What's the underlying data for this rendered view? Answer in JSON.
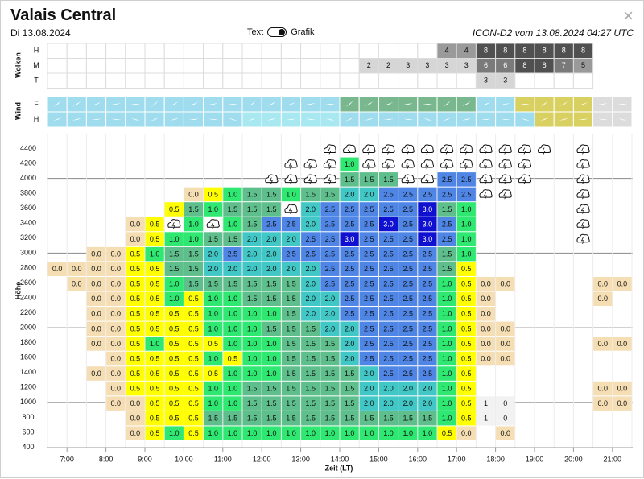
{
  "header": {
    "title": "Valais Central",
    "date": "Di 13.08.2024",
    "toggle_left": "Text",
    "toggle_right": "Grafik",
    "model_run": "ICON-D2 vom 13.08.2024 04:27 UTC",
    "close_label": "×"
  },
  "labels": {
    "clouds_section": "Wolken",
    "wind_section": "Wind",
    "height_axis": "Höhe",
    "time_axis": "Zeit (LT)",
    "cloud_rows": [
      "H",
      "M",
      "T"
    ],
    "wind_rows": [
      "F",
      "H"
    ]
  },
  "clouds": {
    "H": [
      null,
      null,
      null,
      null,
      null,
      null,
      null,
      null,
      null,
      null,
      null,
      null,
      null,
      null,
      null,
      null,
      null,
      null,
      null,
      null,
      4,
      4,
      8,
      8,
      8,
      8,
      8,
      8
    ],
    "M": [
      null,
      null,
      null,
      null,
      null,
      null,
      null,
      null,
      null,
      null,
      null,
      null,
      null,
      null,
      null,
      null,
      2,
      2,
      3,
      3,
      3,
      3,
      6,
      6,
      8,
      8,
      7,
      5
    ],
    "T": [
      null,
      null,
      null,
      null,
      null,
      null,
      null,
      null,
      null,
      null,
      null,
      null,
      null,
      null,
      null,
      null,
      null,
      null,
      null,
      null,
      null,
      null,
      3,
      3,
      null,
      null,
      null,
      null
    ]
  },
  "altitudes": [
    4400,
    4200,
    4000,
    3800,
    3600,
    3400,
    3200,
    3000,
    2800,
    2600,
    2400,
    2200,
    2000,
    1800,
    1600,
    1400,
    1200,
    1000,
    800,
    600,
    400
  ],
  "times": [
    "7:00",
    "8:00",
    "9:00",
    "10:00",
    "11:00",
    "12:00",
    "13:00",
    "14:00",
    "15:00",
    "16:00",
    "17:00",
    "18:00",
    "19:00",
    "20:00",
    "21:00"
  ],
  "thermal_rows": [
    {
      "alt": 4400,
      "cells": [
        null,
        null,
        null,
        null,
        null,
        null,
        null,
        null,
        null,
        null,
        null,
        null,
        null,
        null,
        "c",
        "c",
        "c",
        "c",
        "c",
        "c",
        "c",
        "c",
        "c",
        "c",
        "c",
        "c",
        null,
        "c",
        null,
        null
      ]
    },
    {
      "alt": 4200,
      "cells": [
        null,
        null,
        null,
        null,
        null,
        null,
        null,
        null,
        null,
        null,
        null,
        null,
        "c",
        "c",
        "c",
        "1.0",
        "c",
        "c",
        "c",
        "c",
        "c",
        "c",
        "c",
        "c",
        "c",
        null,
        null,
        "c",
        null,
        null
      ]
    },
    {
      "alt": 4000,
      "cells": [
        null,
        null,
        null,
        null,
        null,
        null,
        null,
        null,
        null,
        null,
        null,
        "c",
        "c",
        "c",
        "c",
        "1.5",
        "1.5",
        "1.5",
        "c",
        "c",
        "2.5",
        "2.5",
        "c",
        "c",
        "c",
        null,
        null,
        "c",
        null,
        null
      ]
    },
    {
      "alt": 3800,
      "cells": [
        null,
        null,
        null,
        null,
        null,
        null,
        null,
        "0.0",
        "0.5",
        "1.0",
        "1.5",
        "1.5",
        "1.0",
        "1.5",
        "1.5",
        "2.0",
        "2.0",
        "2.5",
        "2.5",
        "2.5",
        "2.5",
        "2.5",
        "c",
        "c",
        null,
        null,
        null,
        "c",
        null,
        null
      ]
    },
    {
      "alt": 3600,
      "cells": [
        null,
        null,
        null,
        null,
        null,
        null,
        "0.5",
        "1.5",
        "1.0",
        "1.5",
        "1.5",
        "1.5",
        "c",
        "2.0",
        "2.5",
        "2.5",
        "2.5",
        "2.5",
        "2.5",
        "3.0",
        "1.5",
        "1.0",
        null,
        null,
        null,
        null,
        null,
        "c",
        null,
        null
      ]
    },
    {
      "alt": 3400,
      "cells": [
        null,
        null,
        null,
        null,
        "0.0",
        "0.5",
        "c",
        "1.0",
        "c",
        "1.0",
        "1.5",
        "2.5",
        "2.5",
        "2.0",
        "2.5",
        "2.5",
        "2.5",
        "3.0",
        "2.5",
        "3.0",
        "2.5",
        "1.0",
        null,
        null,
        null,
        null,
        null,
        "c",
        null,
        null
      ]
    },
    {
      "alt": 3200,
      "cells": [
        null,
        null,
        null,
        null,
        "0.0",
        "0.5",
        "1.0",
        "1.0",
        "1.5",
        "1.5",
        "2.0",
        "2.0",
        "2.0",
        "2.5",
        "2.5",
        "3.0",
        "2.5",
        "2.5",
        "2.5",
        "3.0",
        "2.5",
        "1.0",
        null,
        null,
        null,
        null,
        null,
        "c",
        null,
        null
      ]
    },
    {
      "alt": 3000,
      "cells": [
        null,
        null,
        "0.0",
        "0.0",
        "0.5",
        "1.0",
        "1.5",
        "1.5",
        "2.0",
        "2.5",
        "2.0",
        "2.0",
        "2.5",
        "2.5",
        "2.5",
        "2.5",
        "2.5",
        "2.5",
        "2.5",
        "2.5",
        "1.5",
        "1.0",
        null,
        null,
        null,
        null,
        null,
        null,
        null,
        null
      ]
    },
    {
      "alt": 2800,
      "cells": [
        "0.0",
        "0.0",
        "0.0",
        "0.0",
        "0.5",
        "0.5",
        "1.5",
        "1.5",
        "2.0",
        "2.0",
        "2.0",
        "2.0",
        "2.0",
        "2.0",
        "2.5",
        "2.5",
        "2.5",
        "2.5",
        "2.5",
        "2.5",
        "1.5",
        "0.5",
        null,
        null,
        null,
        null,
        null,
        null,
        null,
        null
      ]
    },
    {
      "alt": 2600,
      "cells": [
        null,
        "0.0",
        "0.0",
        "0.0",
        "0.5",
        "0.5",
        "1.0",
        "1.5",
        "1.5",
        "1.5",
        "1.5",
        "1.5",
        "1.5",
        "2.0",
        "2.5",
        "2.5",
        "2.5",
        "2.5",
        "2.5",
        "2.5",
        "1.0",
        "0.5",
        "0.0",
        "0.0",
        null,
        null,
        null,
        null,
        "0.0",
        "0.0"
      ]
    },
    {
      "alt": 2400,
      "cells": [
        null,
        null,
        "0.0",
        "0.0",
        "0.5",
        "0.5",
        "1.0",
        "0.5",
        "1.0",
        "1.0",
        "1.5",
        "1.5",
        "1.5",
        "2.0",
        "2.0",
        "2.5",
        "2.5",
        "2.5",
        "2.5",
        "2.5",
        "1.0",
        "0.5",
        "0.0",
        null,
        null,
        null,
        null,
        null,
        "0.0",
        null
      ]
    },
    {
      "alt": 2200,
      "cells": [
        null,
        null,
        "0.0",
        "0.0",
        "0.5",
        "0.5",
        "0.5",
        "0.5",
        "1.0",
        "1.0",
        "1.0",
        "1.0",
        "1.5",
        "2.0",
        "2.0",
        "2.5",
        "2.5",
        "2.5",
        "2.5",
        "2.5",
        "1.0",
        "0.5",
        "0.0",
        null,
        null,
        null,
        null,
        null,
        null,
        null
      ]
    },
    {
      "alt": 2000,
      "cells": [
        null,
        null,
        "0.0",
        "0.0",
        "0.5",
        "0.5",
        "0.5",
        "0.5",
        "1.0",
        "1.0",
        "1.0",
        "1.5",
        "1.5",
        "1.5",
        "2.0",
        "2.0",
        "2.5",
        "2.5",
        "2.5",
        "2.5",
        "1.0",
        "0.5",
        "0.0",
        "0.0",
        null,
        null,
        null,
        null,
        null,
        null
      ]
    },
    {
      "alt": 1800,
      "cells": [
        null,
        null,
        "0.0",
        "0.0",
        "0.5",
        "1.0",
        "0.5",
        "0.5",
        "0.5",
        "1.0",
        "1.0",
        "1.0",
        "1.5",
        "1.5",
        "1.5",
        "2.0",
        "2.5",
        "2.5",
        "2.5",
        "2.5",
        "1.0",
        "0.5",
        "0.0",
        "0.0",
        null,
        null,
        null,
        null,
        "0.0",
        "0.0"
      ]
    },
    {
      "alt": 1600,
      "cells": [
        null,
        null,
        null,
        "0.0",
        "0.5",
        "0.5",
        "0.5",
        "0.5",
        "1.0",
        "0.5",
        "1.0",
        "1.0",
        "1.5",
        "1.5",
        "1.5",
        "2.0",
        "2.5",
        "2.5",
        "2.5",
        "2.5",
        "1.0",
        "0.5",
        "0.0",
        "0.0",
        null,
        null,
        null,
        null,
        null,
        null
      ]
    },
    {
      "alt": 1400,
      "cells": [
        null,
        null,
        "0.0",
        "0.0",
        "0.5",
        "0.5",
        "0.5",
        "0.5",
        "0.5",
        "1.0",
        "1.0",
        "1.0",
        "1.5",
        "1.5",
        "1.5",
        "1.5",
        "2.0",
        "2.5",
        "2.5",
        "2.5",
        "1.0",
        "0.5",
        null,
        null,
        null,
        null,
        null,
        null,
        null,
        null
      ]
    },
    {
      "alt": 1200,
      "cells": [
        null,
        null,
        null,
        "0.0",
        "0.5",
        "0.5",
        "0.5",
        "0.5",
        "1.0",
        "1.0",
        "1.5",
        "1.5",
        "1.5",
        "1.5",
        "1.5",
        "1.5",
        "2.0",
        "2.0",
        "2.0",
        "2.0",
        "1.0",
        "0.5",
        null,
        null,
        null,
        null,
        null,
        null,
        "0.0",
        "0.0"
      ]
    },
    {
      "alt": 1000,
      "cells": [
        null,
        null,
        null,
        "0.0",
        "0.0",
        "0.5",
        "0.5",
        "0.5",
        "1.0",
        "1.0",
        "1.5",
        "1.5",
        "1.5",
        "1.5",
        "1.5",
        "1.5",
        "2.0",
        "2.0",
        "2.0",
        "2.0",
        "1.0",
        "0.5",
        "1",
        "0",
        null,
        null,
        null,
        null,
        "0.0",
        "0.0"
      ]
    },
    {
      "alt": 800,
      "cells": [
        null,
        null,
        null,
        null,
        "0.0",
        "0.5",
        "0.5",
        "0.5",
        "1.5",
        "1.5",
        "1.5",
        "1.5",
        "1.5",
        "1.5",
        "1.5",
        "1.5",
        "1.5",
        "1.5",
        "1.5",
        "1.5",
        "1.0",
        "0.5",
        "1",
        "0",
        null,
        null,
        null,
        null,
        null,
        null
      ]
    },
    {
      "alt": 600,
      "cells": [
        null,
        null,
        null,
        null,
        "0.0",
        "0.5",
        "1.0",
        "0.5",
        "1.0",
        "1.0",
        "1.0",
        "1.0",
        "1.0",
        "1.0",
        "1.0",
        "1.0",
        "1.0",
        "1.0",
        "1.0",
        "1.0",
        "0.5",
        "0.0",
        null,
        "0.0",
        null,
        null,
        null,
        null,
        null,
        null
      ]
    }
  ],
  "colors": {
    "v0_0": "#f5deb3",
    "v0_5": "#ffff00",
    "v1_0": "#2ee872",
    "v1_5": "#5fbf8c",
    "v2_0": "#42c7c7",
    "v2_5": "#4f86e6",
    "v3_0": "#1010d0",
    "cloud_light": "#e0e0e0",
    "cloud_mid": "#a0a0a0",
    "cloud_dark": "#505050",
    "wind_light": "#9fdcee",
    "wind_green": "#79b88e",
    "wind_yellow": "#d8d060"
  }
}
